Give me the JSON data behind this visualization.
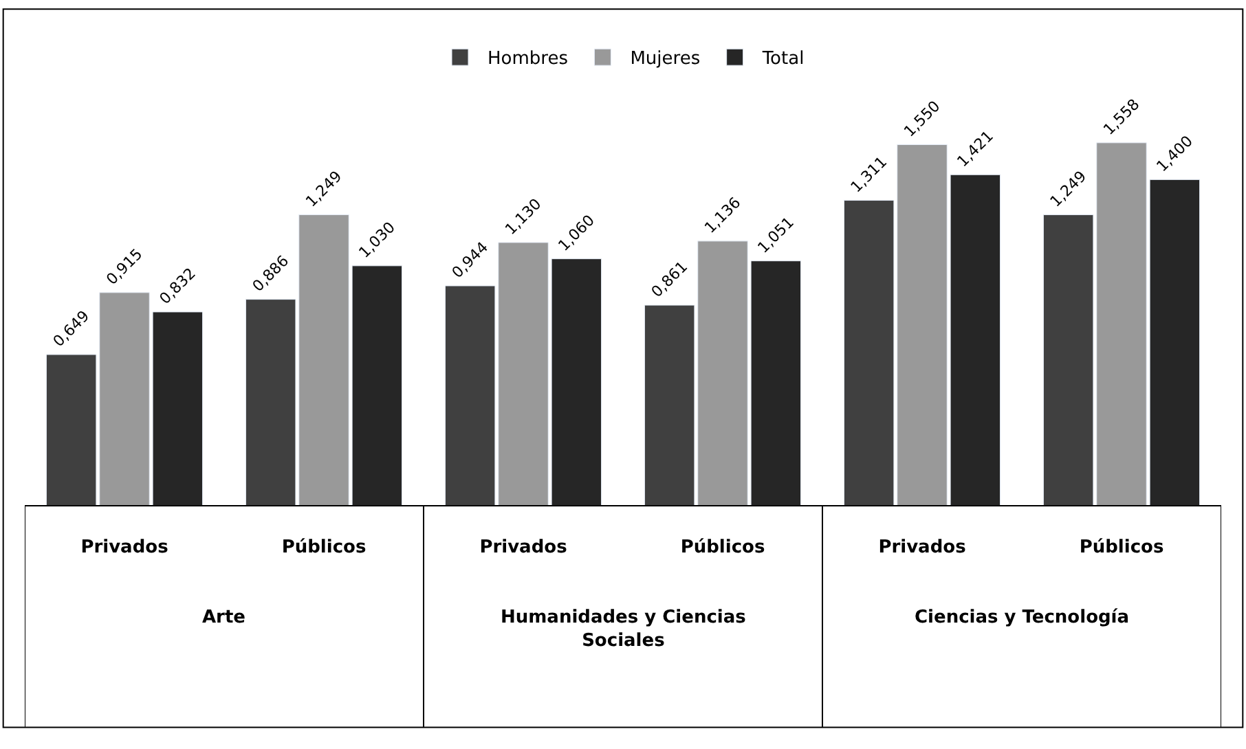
{
  "chart_data": {
    "type": "bar",
    "categories": [
      "Privados",
      "Públicos",
      "Privados",
      "Públicos",
      "Privados",
      "Públicos"
    ],
    "annotations": [
      "Arte",
      "Humanidades y Ciencias Sociales",
      "Ciencias y Tecnología"
    ],
    "legend": "top",
    "series": [
      {
        "name": "Hombres",
        "color": "#404040",
        "values": [
          0.649,
          0.886,
          0.944,
          0.861,
          1.311,
          1.249
        ],
        "value_labels": [
          "0,649",
          "0,886",
          "0,944",
          "0,861",
          "1,311",
          "1,249"
        ]
      },
      {
        "name": "Mujeres",
        "color": "#999999",
        "values": [
          0.915,
          1.249,
          1.13,
          1.136,
          1.55,
          1.558
        ],
        "value_labels": [
          "0,915",
          "1,249",
          "1,130",
          "1,136",
          "1,550",
          "1,558"
        ]
      },
      {
        "name": "Total",
        "color": "#262626",
        "values": [
          0.832,
          1.03,
          1.06,
          1.051,
          1.421,
          1.4
        ],
        "value_labels": [
          "0,832",
          "1,030",
          "1,060",
          "1,051",
          "1,421",
          "1,400"
        ]
      }
    ]
  }
}
